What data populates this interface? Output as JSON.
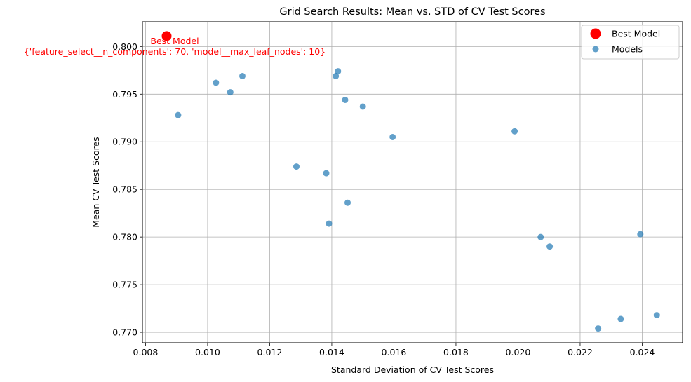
{
  "chart_data": {
    "type": "scatter",
    "title": "Grid Search Results: Mean vs. STD of CV Test Scores",
    "xlabel": "Standard Deviation of CV Test Scores",
    "ylabel": "Mean CV Test Scores",
    "xlim": [
      0.0079,
      0.0253
    ],
    "ylim": [
      0.7689,
      0.8026
    ],
    "xticks": [
      "0.008",
      "0.010",
      "0.012",
      "0.014",
      "0.016",
      "0.018",
      "0.020",
      "0.022",
      "0.024"
    ],
    "xtick_values": [
      0.008,
      0.01,
      0.012,
      0.014,
      0.016,
      0.018,
      0.02,
      0.022,
      0.024
    ],
    "yticks": [
      "0.770",
      "0.775",
      "0.780",
      "0.785",
      "0.790",
      "0.795",
      "0.800"
    ],
    "ytick_values": [
      0.77,
      0.775,
      0.78,
      0.785,
      0.79,
      0.795,
      0.8
    ],
    "grid": true,
    "legend_position": "top-right",
    "series": [
      {
        "name": "Models",
        "color": "#1f77b4",
        "points": [
          {
            "x": 0.00868,
            "y": 0.8011
          },
          {
            "x": 0.00905,
            "y": 0.7928
          },
          {
            "x": 0.01027,
            "y": 0.7962
          },
          {
            "x": 0.01073,
            "y": 0.7952
          },
          {
            "x": 0.01112,
            "y": 0.7969
          },
          {
            "x": 0.01286,
            "y": 0.7874
          },
          {
            "x": 0.01382,
            "y": 0.7867
          },
          {
            "x": 0.01391,
            "y": 0.7814
          },
          {
            "x": 0.01413,
            "y": 0.7969
          },
          {
            "x": 0.0142,
            "y": 0.7974
          },
          {
            "x": 0.01443,
            "y": 0.7944
          },
          {
            "x": 0.01451,
            "y": 0.7836
          },
          {
            "x": 0.015,
            "y": 0.7937
          },
          {
            "x": 0.01596,
            "y": 0.7905
          },
          {
            "x": 0.01989,
            "y": 0.7911
          },
          {
            "x": 0.02073,
            "y": 0.78
          },
          {
            "x": 0.02102,
            "y": 0.779
          },
          {
            "x": 0.02258,
            "y": 0.7704
          },
          {
            "x": 0.02331,
            "y": 0.7714
          },
          {
            "x": 0.02394,
            "y": 0.7803
          },
          {
            "x": 0.02447,
            "y": 0.7718
          }
        ]
      },
      {
        "name": "Best Model",
        "color": "#ff0000",
        "points": [
          {
            "x": 0.00868,
            "y": 0.8011
          }
        ]
      }
    ],
    "annotation": {
      "line1": "Best Model",
      "line2": "{'feature_select__n_components': 70, 'model__max_leaf_nodes': 10}",
      "color": "#ff0000"
    }
  }
}
